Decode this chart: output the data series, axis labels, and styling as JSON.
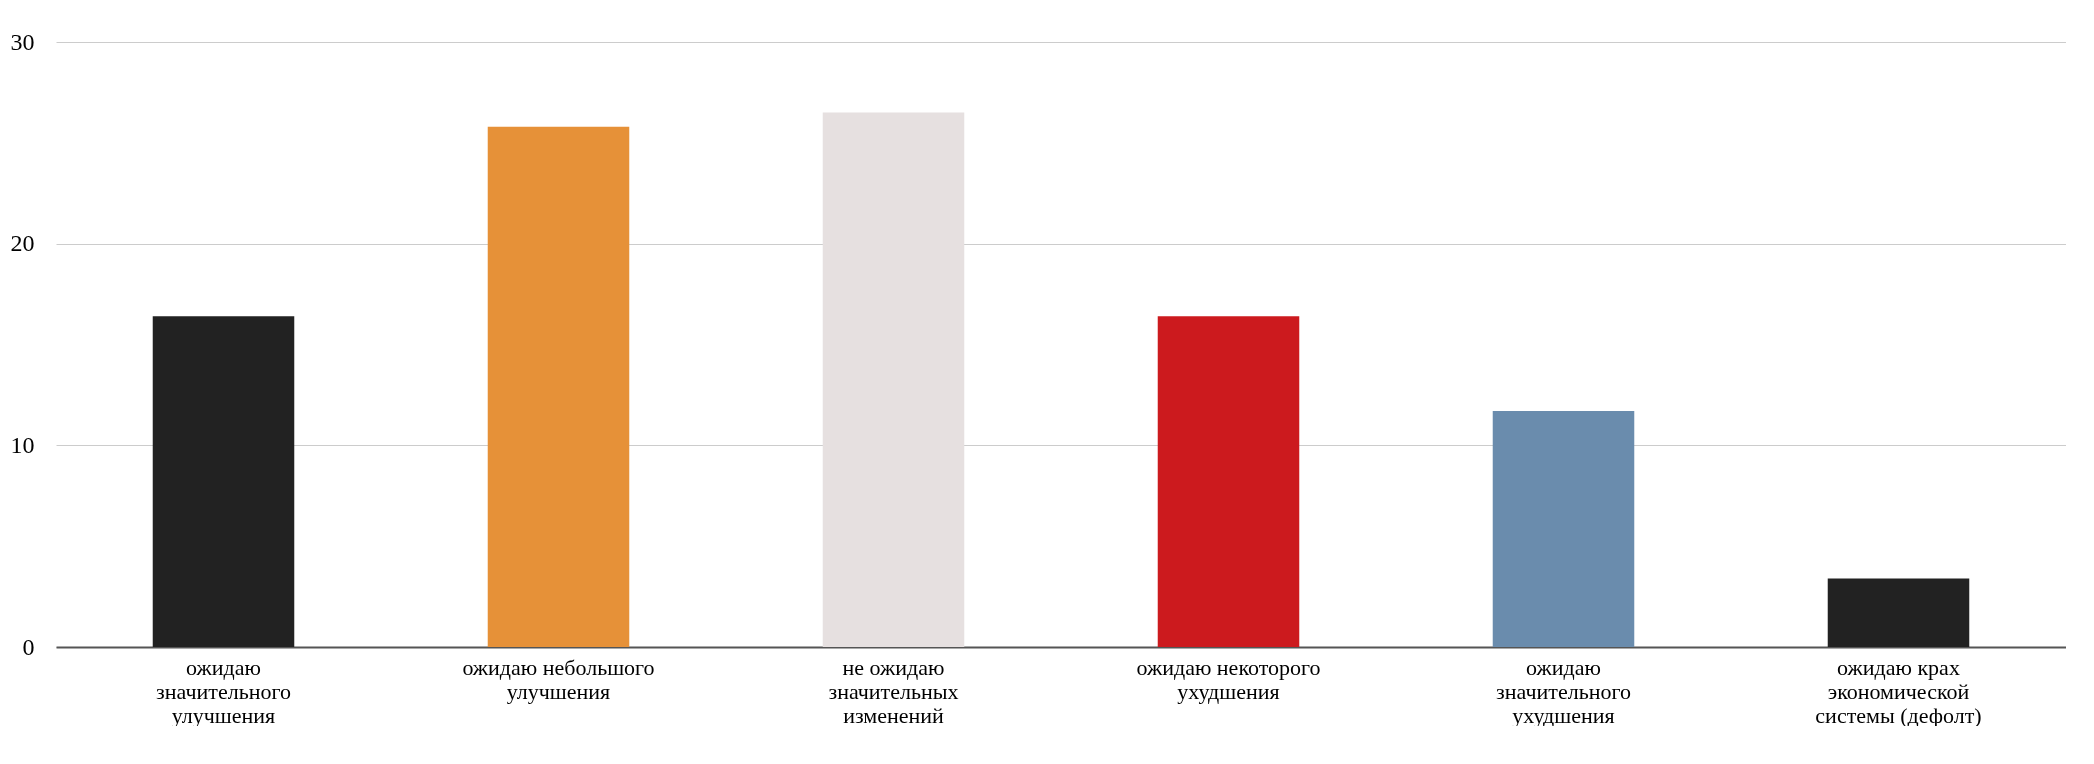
{
  "chart_data": {
    "type": "bar",
    "categories": [
      "ожидаю значительного улучшения",
      "ожидаю небольшого улучшения",
      "не ожидаю значительных изменений",
      "ожидаю некоторого ухудшения",
      "ожидаю значительного ухудшения",
      "ожидаю крах экономической системы (дефолт)"
    ],
    "values": [
      16.4,
      25.8,
      26.5,
      16.4,
      11.7,
      3.4
    ],
    "colors": [
      "#222222",
      "#e69138",
      "#e6e0e0",
      "#cc1a1e",
      "#6a8cad",
      "#222222"
    ],
    "ylim": [
      0,
      30
    ],
    "yticks": [
      0,
      10,
      20,
      30
    ],
    "grid": "y",
    "legend": false
  }
}
